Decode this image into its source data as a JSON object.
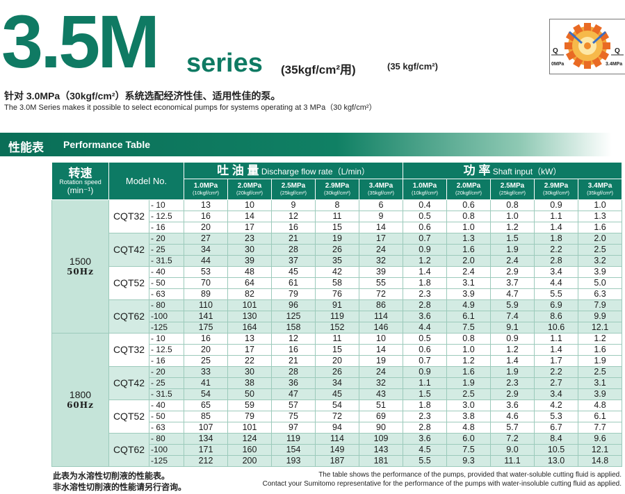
{
  "header": {
    "big_title": "3.5M",
    "series_word": "series",
    "series_jp": "(35kgf/cm²用)",
    "series_en": "(35 kgf/cm²)",
    "logo": {
      "left_label": "Q",
      "right_label": "Q",
      "left_sub": "0MPa",
      "right_sub": "3.4MPa"
    },
    "desc_cn": "针对 3.0MPa（30kgf/cm²）系统选配经济性佳、适用性佳的泵。",
    "desc_en": "The 3.0M Series makes it possible to select economical pumps for systems operating at 3 MPa（30 kgf/cm²）"
  },
  "band": {
    "title_cn": "性能表",
    "title_en": "Performance Table"
  },
  "table": {
    "rpm_header_cn": "转速",
    "rpm_header_en": "Rotation speed",
    "rpm_unit": "(min⁻¹)",
    "model_header": "Model No.",
    "discharge_cn": "吐 油 量",
    "discharge_en": "Discharge flow rate（L/min）",
    "power_cn": "功 率",
    "power_en": "Shaft input（kW）",
    "pressures": [
      {
        "mpa": "1.0MPa",
        "kgf": "(10kgf/cm²)"
      },
      {
        "mpa": "2.0MPa",
        "kgf": "(20kgf/cm²)"
      },
      {
        "mpa": "2.5MPa",
        "kgf": "(25kgf/cm²)"
      },
      {
        "mpa": "2.9MPa",
        "kgf": "(30kgf/cm²)"
      },
      {
        "mpa": "3.4MPa",
        "kgf": "(35kgf/cm²)"
      }
    ],
    "blocks": [
      {
        "rpm": "1500",
        "hz": "50Hz",
        "models": [
          {
            "name": "CQT32",
            "rows": [
              {
                "suffix": "- 10",
                "flow": [
                  "13",
                  "10",
                  "9",
                  "8",
                  "6"
                ],
                "power": [
                  "0.4",
                  "0.6",
                  "0.8",
                  "0.9",
                  "1.0"
                ]
              },
              {
                "suffix": "- 12.5",
                "flow": [
                  "16",
                  "14",
                  "12",
                  "11",
                  "9"
                ],
                "power": [
                  "0.5",
                  "0.8",
                  "1.0",
                  "1.1",
                  "1.3"
                ]
              },
              {
                "suffix": "- 16",
                "flow": [
                  "20",
                  "17",
                  "16",
                  "15",
                  "14"
                ],
                "power": [
                  "0.6",
                  "1.0",
                  "1.2",
                  "1.4",
                  "1.6"
                ]
              }
            ]
          },
          {
            "name": "CQT42",
            "rows": [
              {
                "suffix": "- 20",
                "flow": [
                  "27",
                  "23",
                  "21",
                  "19",
                  "17"
                ],
                "power": [
                  "0.7",
                  "1.3",
                  "1.5",
                  "1.8",
                  "2.0"
                ]
              },
              {
                "suffix": "- 25",
                "flow": [
                  "34",
                  "30",
                  "28",
                  "26",
                  "24"
                ],
                "power": [
                  "0.9",
                  "1.6",
                  "1.9",
                  "2.2",
                  "2.5"
                ]
              },
              {
                "suffix": "- 31.5",
                "flow": [
                  "44",
                  "39",
                  "37",
                  "35",
                  "32"
                ],
                "power": [
                  "1.2",
                  "2.0",
                  "2.4",
                  "2.8",
                  "3.2"
                ]
              }
            ]
          },
          {
            "name": "CQT52",
            "rows": [
              {
                "suffix": "- 40",
                "flow": [
                  "53",
                  "48",
                  "45",
                  "42",
                  "39"
                ],
                "power": [
                  "1.4",
                  "2.4",
                  "2.9",
                  "3.4",
                  "3.9"
                ]
              },
              {
                "suffix": "- 50",
                "flow": [
                  "70",
                  "64",
                  "61",
                  "58",
                  "55"
                ],
                "power": [
                  "1.8",
                  "3.1",
                  "3.7",
                  "4.4",
                  "5.0"
                ]
              },
              {
                "suffix": "- 63",
                "flow": [
                  "89",
                  "82",
                  "79",
                  "76",
                  "72"
                ],
                "power": [
                  "2.3",
                  "3.9",
                  "4.7",
                  "5.5",
                  "6.3"
                ]
              }
            ]
          },
          {
            "name": "CQT62",
            "rows": [
              {
                "suffix": "- 80",
                "flow": [
                  "110",
                  "101",
                  "96",
                  "91",
                  "86"
                ],
                "power": [
                  "2.8",
                  "4.9",
                  "5.9",
                  "6.9",
                  "7.9"
                ]
              },
              {
                "suffix": "-100",
                "flow": [
                  "141",
                  "130",
                  "125",
                  "119",
                  "114"
                ],
                "power": [
                  "3.6",
                  "6.1",
                  "7.4",
                  "8.6",
                  "9.9"
                ]
              },
              {
                "suffix": "-125",
                "flow": [
                  "175",
                  "164",
                  "158",
                  "152",
                  "146"
                ],
                "power": [
                  "4.4",
                  "7.5",
                  "9.1",
                  "10.6",
                  "12.1"
                ]
              }
            ]
          }
        ]
      },
      {
        "rpm": "1800",
        "hz": "60Hz",
        "models": [
          {
            "name": "CQT32",
            "rows": [
              {
                "suffix": "- 10",
                "flow": [
                  "16",
                  "13",
                  "12",
                  "11",
                  "10"
                ],
                "power": [
                  "0.5",
                  "0.8",
                  "0.9",
                  "1.1",
                  "1.2"
                ]
              },
              {
                "suffix": "- 12.5",
                "flow": [
                  "20",
                  "17",
                  "16",
                  "15",
                  "14"
                ],
                "power": [
                  "0.6",
                  "1.0",
                  "1.2",
                  "1.4",
                  "1.6"
                ]
              },
              {
                "suffix": "- 16",
                "flow": [
                  "25",
                  "22",
                  "21",
                  "20",
                  "19"
                ],
                "power": [
                  "0.7",
                  "1.2",
                  "1.4",
                  "1.7",
                  "1.9"
                ]
              }
            ]
          },
          {
            "name": "CQT42",
            "rows": [
              {
                "suffix": "- 20",
                "flow": [
                  "33",
                  "30",
                  "28",
                  "26",
                  "24"
                ],
                "power": [
                  "0.9",
                  "1.6",
                  "1.9",
                  "2.2",
                  "2.5"
                ]
              },
              {
                "suffix": "- 25",
                "flow": [
                  "41",
                  "38",
                  "36",
                  "34",
                  "32"
                ],
                "power": [
                  "1.1",
                  "1.9",
                  "2.3",
                  "2.7",
                  "3.1"
                ]
              },
              {
                "suffix": "- 31.5",
                "flow": [
                  "54",
                  "50",
                  "47",
                  "45",
                  "43"
                ],
                "power": [
                  "1.5",
                  "2.5",
                  "2.9",
                  "3.4",
                  "3.9"
                ]
              }
            ]
          },
          {
            "name": "CQT52",
            "rows": [
              {
                "suffix": "- 40",
                "flow": [
                  "65",
                  "59",
                  "57",
                  "54",
                  "51"
                ],
                "power": [
                  "1.8",
                  "3.0",
                  "3.6",
                  "4.2",
                  "4.8"
                ]
              },
              {
                "suffix": "- 50",
                "flow": [
                  "85",
                  "79",
                  "75",
                  "72",
                  "69"
                ],
                "power": [
                  "2.3",
                  "3.8",
                  "4.6",
                  "5.3",
                  "6.1"
                ]
              },
              {
                "suffix": "- 63",
                "flow": [
                  "107",
                  "101",
                  "97",
                  "94",
                  "90"
                ],
                "power": [
                  "2.8",
                  "4.8",
                  "5.7",
                  "6.7",
                  "7.7"
                ]
              }
            ]
          },
          {
            "name": "CQT62",
            "rows": [
              {
                "suffix": "- 80",
                "flow": [
                  "134",
                  "124",
                  "119",
                  "114",
                  "109"
                ],
                "power": [
                  "3.6",
                  "6.0",
                  "7.2",
                  "8.4",
                  "9.6"
                ]
              },
              {
                "suffix": "-100",
                "flow": [
                  "171",
                  "160",
                  "154",
                  "149",
                  "143"
                ],
                "power": [
                  "4.5",
                  "7.5",
                  "9.0",
                  "10.5",
                  "12.1"
                ]
              },
              {
                "suffix": "-125",
                "flow": [
                  "212",
                  "200",
                  "193",
                  "187",
                  "181"
                ],
                "power": [
                  "5.5",
                  "9.3",
                  "11.1",
                  "13.0",
                  "14.8"
                ]
              }
            ]
          }
        ]
      }
    ]
  },
  "footer": {
    "cn_line1": "此表为水溶性切削液的性能表。",
    "cn_line2": "非水溶性切削液的性能请另行咨询。",
    "en_line1": "The table shows the performance of the pumps, provided that water-soluble cutting fluid is applied.",
    "en_line2": "Contact your Sumitomo representative for the performance of the pumps with water-insoluble cutting fluid as applied."
  }
}
